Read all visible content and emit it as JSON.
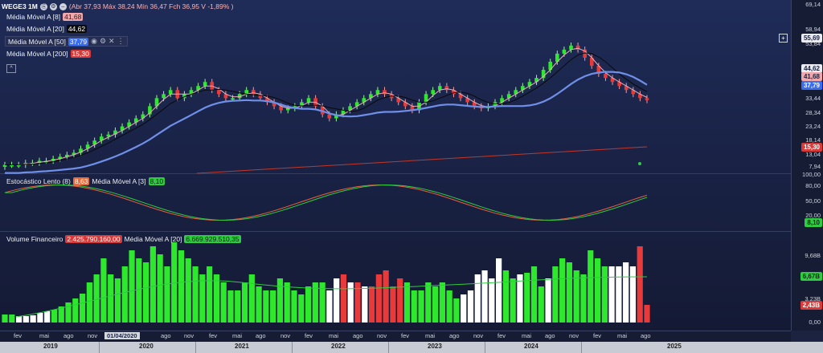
{
  "toolbar": {
    "ticker": "WEGE3 1M",
    "ohlc": "(Abr 37,93 Máx 38,24 Mín 36,47 Fch 36,95 V -1,89% )"
  },
  "indicators": {
    "ma8": {
      "label": "Média Móvel A [8]",
      "value": "41,68",
      "color": "#e8606a"
    },
    "ma20": {
      "label": "Média Móvel A [20]",
      "value": "44,62",
      "color": "#111111"
    },
    "ma50": {
      "label": "Média Móvel A [50]",
      "value": "37,79",
      "color": "#3a6cf0"
    },
    "ma200": {
      "label": "Média Móvel A [200]",
      "value": "15,30",
      "color": "#d83a3a"
    },
    "stoch": {
      "label": "Estocástico Lento (8)",
      "value": "8,63",
      "ma_label": "Média Móvel A [3]",
      "ma_value": "8,10"
    },
    "volume": {
      "label": "Volume Financeiro",
      "value": "2.425.790.160,00",
      "ma_label": "Média Móvel A [20]",
      "ma_value": "6.669.929.510,35"
    }
  },
  "axis": {
    "price_ticks": [
      "69,14",
      "58,94",
      "53,84",
      "33,44",
      "28,34",
      "23,24",
      "18,14",
      "13,04",
      "7,94"
    ],
    "price_badges": [
      {
        "label": "55,69",
        "bg": "#e9ebf1",
        "fg": "#1b2340"
      },
      {
        "label": "44,62",
        "bg": "#e9ebf1",
        "fg": "#1b2340"
      },
      {
        "label": "41,68",
        "bg": "#f2a7ad",
        "fg": "#1b2340"
      },
      {
        "label": "37,79",
        "bg": "#3a6cf0",
        "fg": "#ffffff"
      },
      {
        "label": "15,30",
        "bg": "#d83a3a",
        "fg": "#ffffff"
      }
    ],
    "stoch_ticks": [
      "100,00",
      "80,00",
      "50,00",
      "20,00"
    ],
    "stoch_badge": "8,10",
    "volume_ticks": [
      "9,68B",
      "3,23B",
      "0,00"
    ],
    "volume_badges": [
      {
        "label": "6,67B",
        "bg": "#2ecc40",
        "fg": "#0b2210"
      },
      {
        "label": "2,43B",
        "bg": "#d83a3a",
        "fg": "#ffffff"
      }
    ]
  },
  "time_axis": {
    "months": [
      "fev",
      "mai",
      "ago",
      "nov",
      "01/04/2020",
      "ago",
      "nov",
      "fev",
      "mai",
      "ago",
      "nov",
      "fev",
      "mai",
      "ago",
      "nov",
      "fev",
      "mai",
      "ago",
      "nov",
      "fev",
      "mai",
      "ago",
      "nov",
      "fev",
      "mai",
      "ago"
    ],
    "years": [
      "2019",
      "2020",
      "2021",
      "2022",
      "2023",
      "2024",
      "2025"
    ]
  },
  "colors": {
    "up": "#2ee82e",
    "down": "#e83a3a",
    "neutral": "#ffffff",
    "ma50": "#6f8fe8",
    "ma8": "#e8b0b5"
  }
}
